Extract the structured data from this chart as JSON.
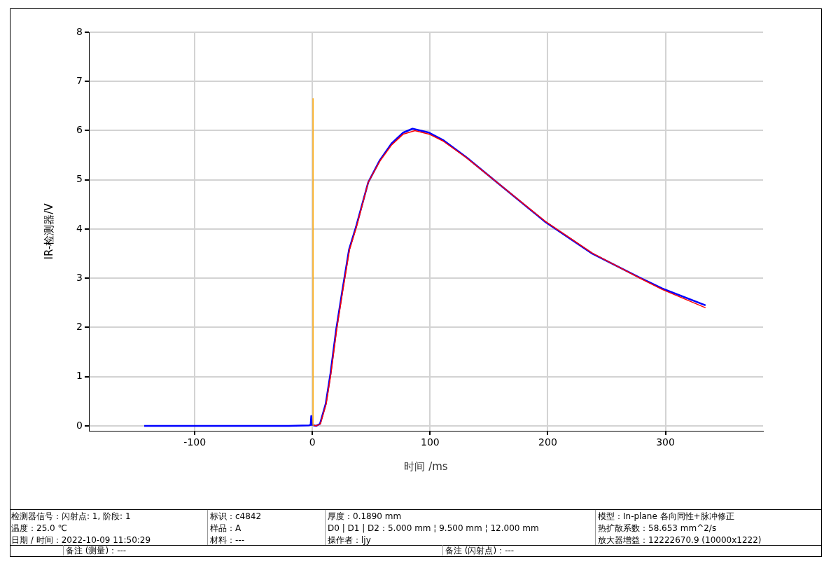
{
  "chart_data": {
    "type": "line",
    "xlabel": "时间 /ms",
    "ylabel": "IR-检测器/V",
    "xlim": [
      -190,
      383
    ],
    "ylim": [
      -0.1,
      8
    ],
    "xticks": [
      -100,
      0,
      100,
      200,
      300
    ],
    "yticks": [
      0,
      1,
      2,
      3,
      4,
      5,
      6,
      7,
      8
    ],
    "grid": true,
    "legend": false,
    "marker": "none",
    "line_style": "solid",
    "series": [
      {
        "color": "#0000ff",
        "x": [
          -143,
          -20,
          -3,
          -1.5,
          -1,
          -0.5,
          3,
          6.4,
          11.3,
          15.3,
          20.2,
          25.2,
          31.1,
          37.1,
          47.4,
          57.3,
          67.3,
          77.2,
          85.1,
          99,
          110.9,
          130.8,
          150.6,
          198.2,
          237.9,
          277.6,
          297.4,
          334.1
        ],
        "values": [
          0,
          0,
          0.01,
          0.02,
          0.2,
          0.02,
          0,
          0.04,
          0.45,
          1.06,
          1.96,
          2.72,
          3.58,
          4.05,
          4.95,
          5.4,
          5.74,
          5.96,
          6.04,
          5.96,
          5.81,
          5.46,
          5.07,
          4.14,
          3.5,
          3.02,
          2.79,
          2.45
        ]
      },
      {
        "color": "#ff0000",
        "x": [
          1.5,
          3,
          6.7,
          11.7,
          15.7,
          20.6,
          25.6,
          31.5,
          37.5,
          47.4,
          57.3,
          67.3,
          77.2,
          87.1,
          99,
          110.9,
          130.8,
          150.6,
          198.2,
          237.9,
          277.6,
          297.4,
          334.1
        ],
        "values": [
          0.01,
          0,
          0.04,
          0.45,
          1.06,
          1.96,
          2.72,
          3.58,
          4.05,
          4.95,
          5.38,
          5.71,
          5.93,
          6,
          5.93,
          5.79,
          5.45,
          5.07,
          4.15,
          3.51,
          3.01,
          2.77,
          2.4
        ]
      },
      {
        "color": "#ffa500",
        "x": [
          0.5,
          0.5
        ],
        "values": [
          0,
          6.66
        ]
      }
    ],
    "annotations": [
      "检测器信号：闪射点: 1, 阶段: 1",
      "温度：25.0 ℃",
      "日期 / 时间：2022-10-09 11:50:29",
      "标识：c4842",
      "样品：A",
      "材料：---",
      "厚度：0.1890 mm",
      "D0 | D1 | D2：5.000 mm ¦ 9.500 mm ¦ 12.000 mm",
      "操作者：ljy",
      "模型：In-plane 各向同性+脉冲修正",
      "热扩散系数：58.653 mm^2/s",
      "放大器增益：12222670.9 (10000x1222)",
      "备注 (测量)：---",
      "备注 (闪射点)：---"
    ]
  }
}
